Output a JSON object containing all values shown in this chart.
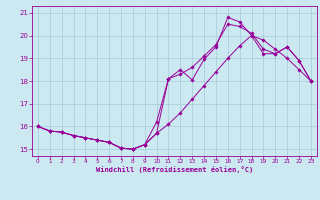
{
  "xlabel": "Windchill (Refroidissement éolien,°C)",
  "bg_color": "#cce8f0",
  "grid_color": "#aacfdc",
  "line_color": "#990099",
  "xlim": [
    -0.5,
    23.5
  ],
  "ylim": [
    14.7,
    21.3
  ],
  "yticks": [
    15,
    16,
    17,
    18,
    19,
    20,
    21
  ],
  "xticks": [
    0,
    1,
    2,
    3,
    4,
    5,
    6,
    7,
    8,
    9,
    10,
    11,
    12,
    13,
    14,
    15,
    16,
    17,
    18,
    19,
    20,
    21,
    22,
    23
  ],
  "series1_x": [
    0,
    1,
    2,
    3,
    4,
    5,
    6,
    7,
    8,
    9,
    10,
    11,
    12,
    13,
    14,
    15,
    16,
    17,
    18,
    19,
    20,
    21,
    22,
    23
  ],
  "series1_y": [
    16.0,
    15.8,
    15.75,
    15.6,
    15.5,
    15.4,
    15.3,
    15.05,
    15.0,
    15.2,
    15.7,
    16.1,
    16.6,
    17.2,
    17.8,
    18.4,
    19.0,
    19.55,
    20.0,
    19.8,
    19.4,
    19.0,
    18.5,
    18.0
  ],
  "series2_x": [
    0,
    1,
    2,
    3,
    4,
    5,
    6,
    7,
    8,
    9,
    10,
    11,
    12,
    13,
    14,
    15,
    16,
    17,
    18,
    19,
    20,
    21,
    22,
    23
  ],
  "series2_y": [
    16.0,
    15.8,
    15.75,
    15.6,
    15.5,
    15.4,
    15.3,
    15.05,
    15.0,
    15.2,
    15.7,
    18.1,
    18.3,
    18.6,
    19.1,
    19.6,
    20.5,
    20.4,
    20.1,
    19.4,
    19.2,
    19.5,
    18.9,
    18.0
  ],
  "series3_x": [
    0,
    1,
    2,
    3,
    4,
    5,
    6,
    7,
    8,
    9,
    10,
    11,
    12,
    13,
    14,
    15,
    16,
    17,
    18,
    19,
    20,
    21,
    22,
    23
  ],
  "series3_y": [
    16.0,
    15.8,
    15.75,
    15.6,
    15.5,
    15.4,
    15.3,
    15.05,
    15.0,
    15.2,
    16.2,
    18.1,
    18.5,
    18.05,
    18.95,
    19.5,
    20.8,
    20.6,
    20.0,
    19.2,
    19.2,
    19.5,
    18.9,
    18.0
  ]
}
